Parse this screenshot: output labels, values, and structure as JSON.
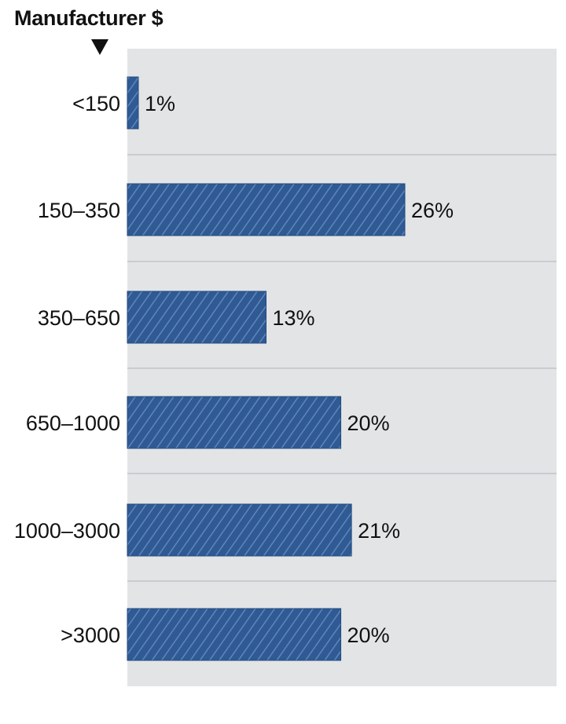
{
  "chart_data": {
    "type": "bar",
    "orientation": "horizontal",
    "title": "Manufacturer $",
    "categories": [
      "<150",
      "150–350",
      "350–650",
      "650–1000",
      "1000–3000",
      ">3000"
    ],
    "values": [
      1,
      26,
      13,
      20,
      21,
      20
    ],
    "value_labels": [
      "1%",
      "26%",
      "13%",
      "20%",
      "21%",
      "20%"
    ],
    "unit": "%",
    "xlim": [
      0,
      40
    ],
    "grid": "horizontal separators",
    "legend": "none",
    "colors": {
      "bar": "#2f5a93",
      "bar_stripe": "#5f86bb",
      "plot_background": "#e2e4e6",
      "separator": "#c9ccd0",
      "text": "#111111"
    }
  }
}
